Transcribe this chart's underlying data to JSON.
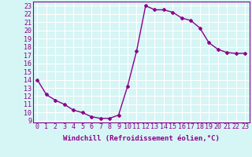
{
  "x": [
    0,
    1,
    2,
    3,
    4,
    5,
    6,
    7,
    8,
    9,
    10,
    11,
    12,
    13,
    14,
    15,
    16,
    17,
    18,
    19,
    20,
    21,
    22,
    23
  ],
  "y": [
    14,
    12.2,
    11.5,
    11.0,
    10.3,
    10.0,
    9.5,
    9.3,
    9.3,
    9.7,
    13.2,
    17.5,
    23.0,
    22.5,
    22.5,
    22.2,
    21.5,
    21.2,
    20.3,
    18.5,
    17.7,
    17.3,
    17.2,
    17.2
  ],
  "line_color": "#8B008B",
  "marker": "D",
  "marker_size": 2,
  "bg_color": "#d6f5f5",
  "grid_color": "#ffffff",
  "xlabel": "Windchill (Refroidissement éolien,°C)",
  "ylabel_ticks": [
    9,
    10,
    11,
    12,
    13,
    14,
    15,
    16,
    17,
    18,
    19,
    20,
    21,
    22,
    23
  ],
  "xlim": [
    -0.5,
    23.5
  ],
  "ylim": [
    8.8,
    23.5
  ],
  "xlabel_fontsize": 6.5,
  "tick_fontsize": 6,
  "line_width": 1.0
}
